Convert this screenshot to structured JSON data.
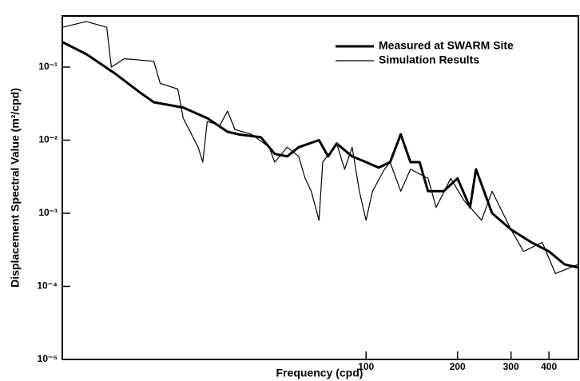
{
  "chart_data": {
    "type": "line",
    "xlabel": "Frequency (cpd)",
    "ylabel": "Displacement Spectral Value (m²/cpd)",
    "xscale": "log",
    "yscale": "log",
    "xlim": [
      10,
      500
    ],
    "ylim": [
      1e-05,
      0.5
    ],
    "xticks": [
      100,
      200,
      300,
      400
    ],
    "yticks": [
      {
        "value": 1e-05,
        "label": "10⁻⁵"
      },
      {
        "value": 0.0001,
        "label": "10⁻⁴"
      },
      {
        "value": 0.001,
        "label": "10⁻³"
      },
      {
        "value": 0.01,
        "label": "10⁻²"
      },
      {
        "value": 0.1,
        "label": "10⁻¹"
      }
    ],
    "legend": "upper right",
    "series": [
      {
        "name": "Measured at SWARM Site",
        "color": "#000000",
        "width": 3,
        "x": [
          10,
          12,
          15,
          18,
          20,
          25,
          30,
          35,
          38,
          45,
          50,
          55,
          60,
          70,
          75,
          80,
          90,
          100,
          110,
          120,
          130,
          140,
          150,
          160,
          180,
          200,
          220,
          230,
          260,
          300,
          350,
          400,
          450,
          500
        ],
        "values": [
          0.22,
          0.15,
          0.08,
          0.045,
          0.033,
          0.028,
          0.02,
          0.013,
          0.012,
          0.011,
          0.0065,
          0.006,
          0.008,
          0.01,
          0.006,
          0.009,
          0.006,
          0.005,
          0.0042,
          0.005,
          0.012,
          0.005,
          0.005,
          0.002,
          0.002,
          0.003,
          0.0012,
          0.004,
          0.001,
          0.0006,
          0.0004,
          0.0003,
          0.0002,
          0.00018
        ]
      },
      {
        "name": "Simulation Results",
        "color": "#000000",
        "width": 1.2,
        "x": [
          10,
          12,
          14,
          14.5,
          16,
          20,
          21,
          24,
          25,
          28,
          29,
          30,
          33,
          35,
          37,
          42,
          48,
          50,
          55,
          60,
          63,
          66,
          70,
          72,
          80,
          85,
          90,
          95,
          100,
          105,
          115,
          120,
          130,
          140,
          160,
          170,
          190,
          210,
          240,
          260,
          300,
          330,
          380,
          420,
          500
        ],
        "values": [
          0.35,
          0.42,
          0.35,
          0.1,
          0.13,
          0.12,
          0.06,
          0.05,
          0.02,
          0.008,
          0.005,
          0.018,
          0.016,
          0.025,
          0.014,
          0.012,
          0.008,
          0.005,
          0.008,
          0.006,
          0.003,
          0.002,
          0.0008,
          0.005,
          0.009,
          0.004,
          0.008,
          0.002,
          0.0008,
          0.002,
          0.004,
          0.005,
          0.002,
          0.004,
          0.003,
          0.0012,
          0.003,
          0.0015,
          0.0008,
          0.002,
          0.0006,
          0.0003,
          0.0004,
          0.00015,
          0.0002
        ]
      }
    ]
  }
}
